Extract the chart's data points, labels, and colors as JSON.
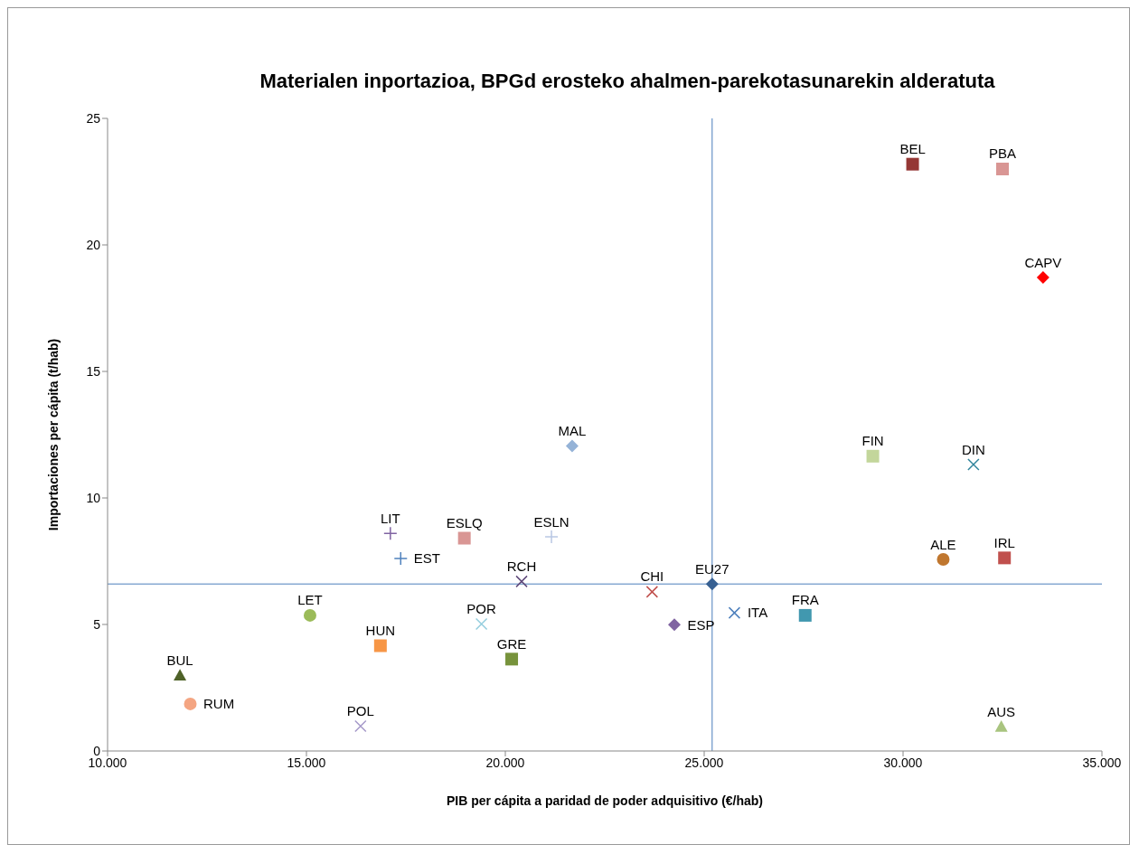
{
  "chart_data": {
    "type": "scatter",
    "title": "Materialen inportazioa, BPGd erosteko ahalmen-parekotasunarekin alderatuta",
    "xlabel": "PIB per cápita a paridad de poder adquisitivo (€/hab)",
    "ylabel": "Importaciones per cápita (t/hab)",
    "xlim": [
      10000,
      35000
    ],
    "xticks": [
      {
        "value": 10000,
        "label": "10.000"
      },
      {
        "value": 15000,
        "label": "15.000"
      },
      {
        "value": 20000,
        "label": "20.000"
      },
      {
        "value": 25000,
        "label": "25.000"
      },
      {
        "value": 30000,
        "label": "30.000"
      },
      {
        "value": 35000,
        "label": "35.000"
      }
    ],
    "ylim": [
      0,
      25
    ],
    "yticks": [
      0,
      5,
      10,
      15,
      20,
      25
    ],
    "grid": false,
    "legend": false,
    "ref_lines": [
      {
        "axis": "y",
        "value": 6.6,
        "color": "#4a7ebb"
      },
      {
        "axis": "x",
        "value": 25200,
        "color": "#4a7ebb"
      }
    ],
    "series": [
      {
        "name": "BUL",
        "color": "#4f6228",
        "marker": "triangle",
        "x": [
          11820
        ],
        "values": [
          2.99
        ]
      },
      {
        "name": "RUM",
        "color": "#f4a582",
        "marker": "circle",
        "x": [
          12080
        ],
        "values": [
          1.86
        ]
      },
      {
        "name": "LET",
        "color": "#9bbb59",
        "marker": "circle",
        "x": [
          15090
        ],
        "values": [
          5.36
        ]
      },
      {
        "name": "HUN",
        "color": "#f79646",
        "marker": "square",
        "x": [
          16860
        ],
        "values": [
          4.16
        ]
      },
      {
        "name": "POL",
        "color": "#a599c9",
        "marker": "cross",
        "x": [
          16360
        ],
        "values": [
          0.98
        ]
      },
      {
        "name": "LIT",
        "color": "#8064a2",
        "marker": "plus",
        "x": [
          17110
        ],
        "values": [
          8.6
        ]
      },
      {
        "name": "EST",
        "color": "#4f81bd",
        "marker": "plus",
        "x": [
          17370
        ],
        "values": [
          7.61
        ]
      },
      {
        "name": "ESLQ",
        "color": "#d99694",
        "marker": "square",
        "x": [
          18970
        ],
        "values": [
          8.41
        ]
      },
      {
        "name": "ESLN",
        "color": "#b9c7e4",
        "marker": "plus",
        "x": [
          21160
        ],
        "values": [
          8.46
        ]
      },
      {
        "name": "RCH",
        "color": "#604a7b",
        "marker": "cross",
        "x": [
          20410
        ],
        "values": [
          6.7
        ]
      },
      {
        "name": "POR",
        "color": "#93cddd",
        "marker": "cross",
        "x": [
          19400
        ],
        "values": [
          5.02
        ]
      },
      {
        "name": "GRE",
        "color": "#77933c",
        "marker": "square",
        "x": [
          20160
        ],
        "values": [
          3.63
        ]
      },
      {
        "name": "MAL",
        "color": "#95b3d7",
        "marker": "diamond",
        "x": [
          21680
        ],
        "values": [
          12.05
        ]
      },
      {
        "name": "CHI",
        "color": "#c0504d",
        "marker": "cross",
        "x": [
          23690
        ],
        "values": [
          6.29
        ]
      },
      {
        "name": "EU27",
        "color": "#376092",
        "marker": "diamond",
        "x": [
          25200
        ],
        "values": [
          6.6
        ]
      },
      {
        "name": "ESP",
        "color": "#8064a2",
        "marker": "diamond",
        "x": [
          24250
        ],
        "values": [
          4.99
        ]
      },
      {
        "name": "ITA",
        "color": "#4f81bd",
        "marker": "cross",
        "x": [
          25760
        ],
        "values": [
          5.46
        ]
      },
      {
        "name": "FRA",
        "color": "#4198af",
        "marker": "square",
        "x": [
          27540
        ],
        "values": [
          5.36
        ]
      },
      {
        "name": "FIN",
        "color": "#c3d69b",
        "marker": "square",
        "x": [
          29240
        ],
        "values": [
          11.65
        ]
      },
      {
        "name": "DIN",
        "color": "#31859c",
        "marker": "cross",
        "x": [
          31770
        ],
        "values": [
          11.32
        ]
      },
      {
        "name": "ALE",
        "color": "#c0772f",
        "marker": "circle",
        "x": [
          31010
        ],
        "values": [
          7.57
        ]
      },
      {
        "name": "IRL",
        "color": "#c0504d",
        "marker": "square",
        "x": [
          32550
        ],
        "values": [
          7.63
        ]
      },
      {
        "name": "AUS",
        "color": "#a9c47f",
        "marker": "triangle",
        "x": [
          32470
        ],
        "values": [
          0.96
        ]
      },
      {
        "name": "BEL",
        "color": "#953735",
        "marker": "square",
        "x": [
          30240
        ],
        "values": [
          23.19
        ]
      },
      {
        "name": "PBA",
        "color": "#d99694",
        "marker": "square",
        "x": [
          32500
        ],
        "values": [
          23.0
        ]
      },
      {
        "name": "CAPV",
        "color": "#ff0000",
        "marker": "diamond",
        "x": [
          33520
        ],
        "values": [
          18.71
        ]
      }
    ]
  }
}
